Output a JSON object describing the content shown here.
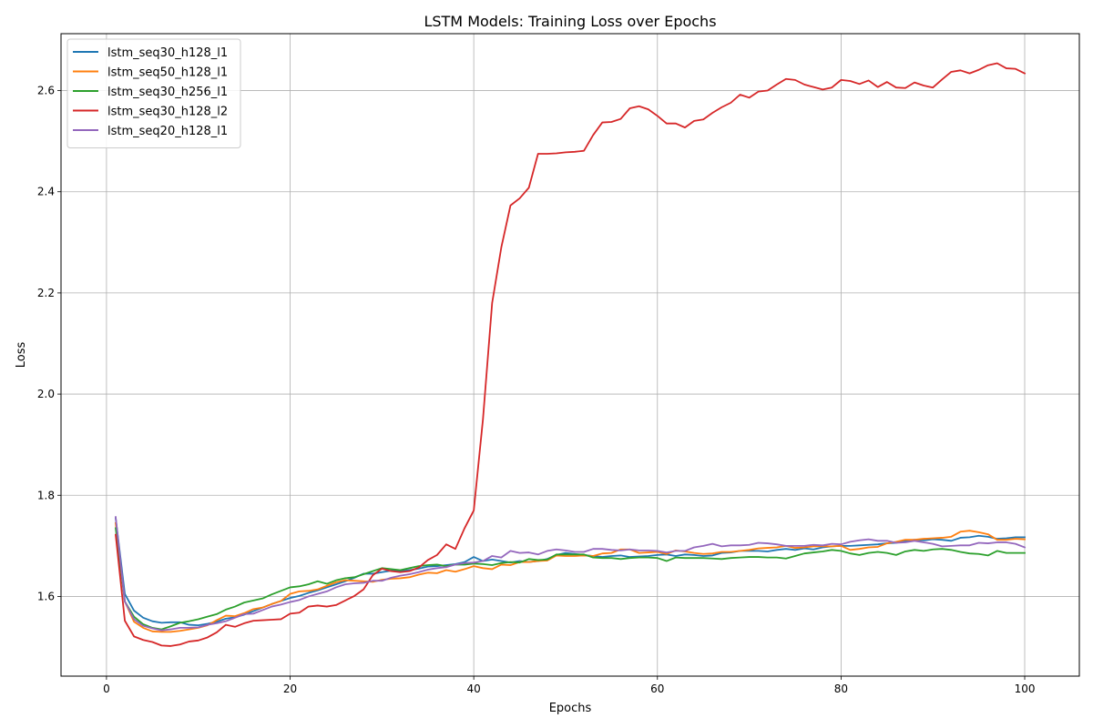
{
  "chart_data": {
    "type": "line",
    "title": "LSTM Models: Training Loss over Epochs",
    "xlabel": "Epochs",
    "ylabel": "Loss",
    "xlim": [
      -4.95,
      105.95
    ],
    "ylim": [
      1.4425,
      2.7125
    ],
    "xticks": [
      0,
      20,
      40,
      60,
      80,
      100
    ],
    "yticks": [
      1.6,
      1.8,
      2.0,
      2.2,
      2.4,
      2.6
    ],
    "xtick_labels": [
      "0",
      "20",
      "40",
      "60",
      "80",
      "100"
    ],
    "ytick_labels": [
      "1.6",
      "1.8",
      "2.0",
      "2.2",
      "2.4",
      "2.6"
    ],
    "grid": true,
    "legend_position": "top-left",
    "colors": [
      "#1f77b4",
      "#ff7f0e",
      "#2ca02c",
      "#d62728",
      "#9467bd"
    ],
    "x": [
      1,
      2,
      3,
      4,
      5,
      6,
      7,
      8,
      9,
      10,
      11,
      12,
      13,
      14,
      15,
      16,
      17,
      18,
      19,
      20,
      21,
      22,
      23,
      24,
      25,
      26,
      27,
      28,
      29,
      30,
      31,
      32,
      33,
      34,
      35,
      36,
      37,
      38,
      39,
      40,
      41,
      42,
      43,
      44,
      45,
      46,
      47,
      48,
      49,
      50,
      51,
      52,
      53,
      54,
      55,
      56,
      57,
      58,
      59,
      60,
      61,
      62,
      63,
      64,
      65,
      66,
      67,
      68,
      69,
      70,
      71,
      72,
      73,
      74,
      75,
      76,
      77,
      78,
      79,
      80,
      81,
      82,
      83,
      84,
      85,
      86,
      87,
      88,
      89,
      90,
      91,
      92,
      93,
      94,
      95,
      96,
      97,
      98,
      99,
      100
    ],
    "series": [
      {
        "name": "lstm_seq30_h128_l1",
        "values": [
          1.755,
          1.605,
          1.572,
          1.558,
          1.551,
          1.548,
          1.549,
          1.549,
          1.544,
          1.543,
          1.546,
          1.55,
          1.556,
          1.559,
          1.564,
          1.571,
          1.578,
          1.585,
          1.591,
          1.597,
          1.601,
          1.607,
          1.612,
          1.618,
          1.624,
          1.63,
          1.637,
          1.645,
          1.645,
          1.648,
          1.651,
          1.65,
          1.652,
          1.655,
          1.659,
          1.66,
          1.662,
          1.664,
          1.668,
          1.678,
          1.67,
          1.673,
          1.67,
          1.667,
          1.67,
          1.668,
          1.67,
          1.674,
          1.682,
          1.686,
          1.684,
          1.682,
          1.68,
          1.678,
          1.68,
          1.681,
          1.678,
          1.679,
          1.68,
          1.682,
          1.683,
          1.68,
          1.683,
          1.682,
          1.68,
          1.681,
          1.686,
          1.687,
          1.69,
          1.69,
          1.69,
          1.689,
          1.692,
          1.694,
          1.692,
          1.695,
          1.693,
          1.697,
          1.699,
          1.7,
          1.7,
          1.701,
          1.702,
          1.703,
          1.705,
          1.706,
          1.71,
          1.712,
          1.711,
          1.713,
          1.712,
          1.71,
          1.716,
          1.717,
          1.72,
          1.718,
          1.714,
          1.715,
          1.717,
          1.717
        ]
      },
      {
        "name": "lstm_seq50_h128_l1",
        "values": [
          1.745,
          1.59,
          1.55,
          1.538,
          1.531,
          1.53,
          1.53,
          1.532,
          1.535,
          1.538,
          1.543,
          1.553,
          1.562,
          1.561,
          1.567,
          1.575,
          1.578,
          1.585,
          1.591,
          1.605,
          1.61,
          1.611,
          1.614,
          1.621,
          1.628,
          1.632,
          1.631,
          1.63,
          1.629,
          1.633,
          1.635,
          1.636,
          1.638,
          1.643,
          1.647,
          1.646,
          1.652,
          1.649,
          1.654,
          1.66,
          1.656,
          1.654,
          1.663,
          1.662,
          1.668,
          1.668,
          1.67,
          1.671,
          1.681,
          1.68,
          1.68,
          1.681,
          1.68,
          1.685,
          1.686,
          1.693,
          1.693,
          1.686,
          1.687,
          1.688,
          1.684,
          1.691,
          1.689,
          1.686,
          1.684,
          1.685,
          1.688,
          1.688,
          1.69,
          1.692,
          1.695,
          1.696,
          1.697,
          1.7,
          1.696,
          1.697,
          1.699,
          1.699,
          1.699,
          1.7,
          1.692,
          1.694,
          1.697,
          1.698,
          1.705,
          1.708,
          1.712,
          1.712,
          1.714,
          1.715,
          1.716,
          1.718,
          1.728,
          1.73,
          1.727,
          1.723,
          1.712,
          1.712,
          1.714,
          1.713
        ]
      },
      {
        "name": "lstm_seq30_h256_l1",
        "values": [
          1.735,
          1.59,
          1.56,
          1.545,
          1.538,
          1.535,
          1.541,
          1.548,
          1.551,
          1.555,
          1.56,
          1.565,
          1.574,
          1.58,
          1.588,
          1.592,
          1.596,
          1.604,
          1.611,
          1.618,
          1.62,
          1.624,
          1.63,
          1.625,
          1.632,
          1.636,
          1.638,
          1.644,
          1.65,
          1.656,
          1.654,
          1.652,
          1.656,
          1.66,
          1.662,
          1.663,
          1.66,
          1.663,
          1.663,
          1.665,
          1.664,
          1.662,
          1.666,
          1.668,
          1.667,
          1.674,
          1.672,
          1.673,
          1.683,
          1.683,
          1.683,
          1.683,
          1.677,
          1.676,
          1.676,
          1.674,
          1.676,
          1.677,
          1.677,
          1.676,
          1.67,
          1.677,
          1.676,
          1.676,
          1.676,
          1.675,
          1.674,
          1.676,
          1.677,
          1.678,
          1.678,
          1.677,
          1.677,
          1.675,
          1.68,
          1.685,
          1.687,
          1.689,
          1.692,
          1.69,
          1.685,
          1.682,
          1.686,
          1.688,
          1.686,
          1.682,
          1.689,
          1.692,
          1.69,
          1.693,
          1.694,
          1.692,
          1.688,
          1.685,
          1.684,
          1.681,
          1.69,
          1.686,
          1.686,
          1.686
        ]
      },
      {
        "name": "lstm_seq30_h128_l2",
        "values": [
          1.722,
          1.552,
          1.521,
          1.514,
          1.51,
          1.503,
          1.502,
          1.505,
          1.511,
          1.513,
          1.519,
          1.529,
          1.544,
          1.54,
          1.547,
          1.552,
          1.553,
          1.554,
          1.555,
          1.566,
          1.568,
          1.58,
          1.582,
          1.58,
          1.583,
          1.592,
          1.601,
          1.614,
          1.642,
          1.655,
          1.65,
          1.648,
          1.65,
          1.657,
          1.672,
          1.682,
          1.703,
          1.694,
          1.735,
          1.77,
          1.95,
          2.18,
          2.29,
          2.373,
          2.387,
          2.408,
          2.475,
          2.475,
          2.476,
          2.478,
          2.479,
          2.481,
          2.512,
          2.537,
          2.538,
          2.544,
          2.565,
          2.569,
          2.563,
          2.55,
          2.535,
          2.535,
          2.527,
          2.54,
          2.543,
          2.556,
          2.567,
          2.576,
          2.592,
          2.586,
          2.598,
          2.6,
          2.612,
          2.623,
          2.621,
          2.612,
          2.607,
          2.602,
          2.606,
          2.621,
          2.619,
          2.613,
          2.62,
          2.607,
          2.617,
          2.606,
          2.605,
          2.616,
          2.61,
          2.606,
          2.622,
          2.637,
          2.64,
          2.634,
          2.641,
          2.65,
          2.654,
          2.644,
          2.643,
          2.634
        ]
      },
      {
        "name": "lstm_seq20_h128_l1",
        "values": [
          1.757,
          1.59,
          1.555,
          1.542,
          1.537,
          1.533,
          1.535,
          1.538,
          1.538,
          1.539,
          1.544,
          1.547,
          1.551,
          1.558,
          1.565,
          1.566,
          1.573,
          1.58,
          1.584,
          1.589,
          1.593,
          1.6,
          1.605,
          1.61,
          1.618,
          1.624,
          1.626,
          1.627,
          1.631,
          1.631,
          1.637,
          1.641,
          1.644,
          1.648,
          1.653,
          1.656,
          1.658,
          1.663,
          1.666,
          1.667,
          1.67,
          1.68,
          1.677,
          1.69,
          1.686,
          1.687,
          1.683,
          1.69,
          1.693,
          1.691,
          1.688,
          1.688,
          1.694,
          1.694,
          1.692,
          1.691,
          1.693,
          1.691,
          1.691,
          1.69,
          1.687,
          1.69,
          1.69,
          1.697,
          1.7,
          1.704,
          1.699,
          1.701,
          1.701,
          1.702,
          1.706,
          1.705,
          1.703,
          1.7,
          1.7,
          1.7,
          1.702,
          1.701,
          1.704,
          1.703,
          1.708,
          1.711,
          1.713,
          1.71,
          1.71,
          1.706,
          1.707,
          1.71,
          1.707,
          1.704,
          1.699,
          1.7,
          1.701,
          1.701,
          1.706,
          1.705,
          1.707,
          1.707,
          1.704,
          1.697
        ]
      }
    ]
  }
}
